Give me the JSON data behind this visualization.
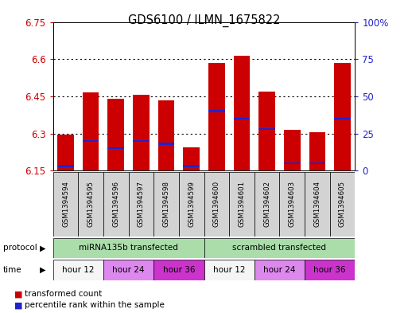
{
  "title": "GDS6100 / ILMN_1675822",
  "samples": [
    "GSM1394594",
    "GSM1394595",
    "GSM1394596",
    "GSM1394597",
    "GSM1394598",
    "GSM1394599",
    "GSM1394600",
    "GSM1394601",
    "GSM1394602",
    "GSM1394603",
    "GSM1394604",
    "GSM1394605"
  ],
  "bar_bottom": 6.15,
  "bar_tops": [
    6.295,
    6.465,
    6.44,
    6.455,
    6.435,
    6.245,
    6.585,
    6.615,
    6.47,
    6.315,
    6.305,
    6.585
  ],
  "percentile_vals": [
    3,
    20,
    15,
    20,
    18,
    3,
    40,
    35,
    28,
    5,
    5,
    35
  ],
  "ylim_left": [
    6.15,
    6.75
  ],
  "ylim_right": [
    0,
    100
  ],
  "yticks_left": [
    6.15,
    6.3,
    6.45,
    6.6,
    6.75
  ],
  "yticks_right": [
    0,
    25,
    50,
    75,
    100
  ],
  "bar_color": "#cc0000",
  "percentile_color": "#2222cc",
  "protocol_groups": [
    {
      "label": "miRNA135b transfected",
      "start": 0,
      "end": 6,
      "color": "#aaddaa"
    },
    {
      "label": "scrambled transfected",
      "start": 6,
      "end": 12,
      "color": "#aaddaa"
    }
  ],
  "time_colors": [
    "#f5f5f5",
    "#dd88ee",
    "#cc33cc",
    "#f5f5f5",
    "#dd88ee",
    "#cc33cc"
  ],
  "time_groups": [
    {
      "label": "hour 12",
      "start": 0,
      "end": 2
    },
    {
      "label": "hour 24",
      "start": 2,
      "end": 4
    },
    {
      "label": "hour 36",
      "start": 4,
      "end": 6
    },
    {
      "label": "hour 12",
      "start": 6,
      "end": 8
    },
    {
      "label": "hour 24",
      "start": 8,
      "end": 10
    },
    {
      "label": "hour 36",
      "start": 10,
      "end": 12
    }
  ],
  "protocol_label": "protocol",
  "time_label": "time",
  "legend1": "transformed count",
  "legend2": "percentile rank within the sample",
  "bg_color": "#ffffff",
  "axis_label_color_left": "#cc0000",
  "axis_label_color_right": "#2222cc",
  "sample_bg_color": "#d3d3d3",
  "fig_width": 5.13,
  "fig_height": 3.93,
  "dpi": 100
}
